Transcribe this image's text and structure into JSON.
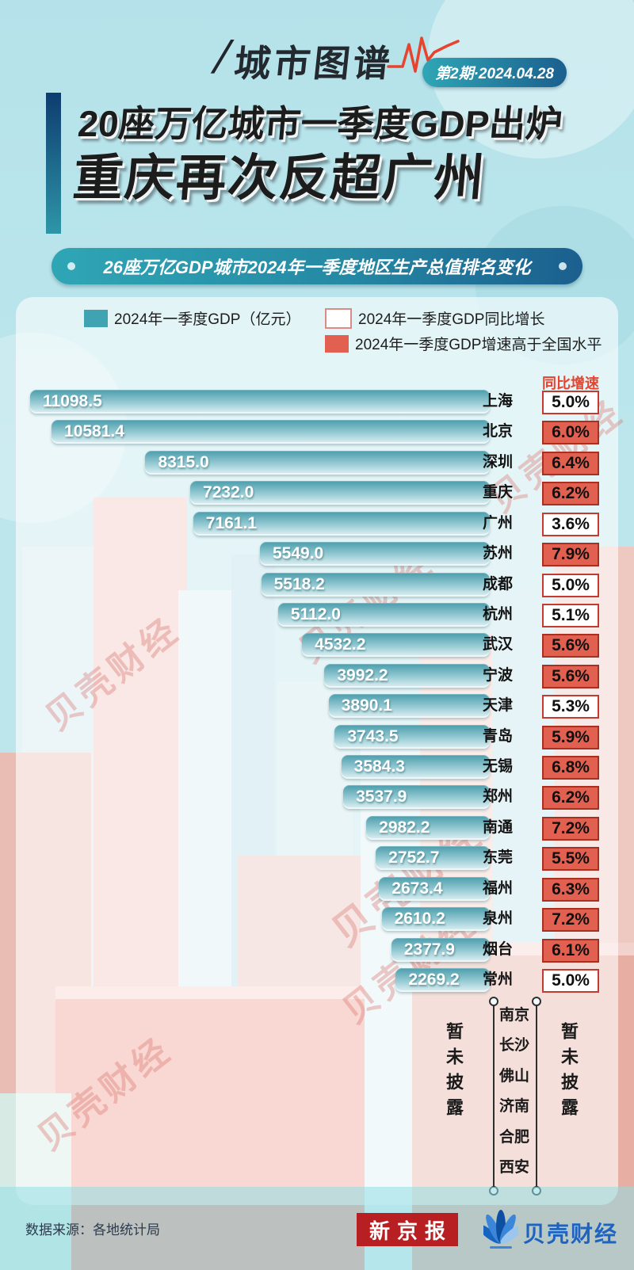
{
  "header": {
    "brand": "城市图谱",
    "issue": "第2期·2024.04.28"
  },
  "title": {
    "line1": "20座万亿城市一季度GDP出炉",
    "line2": "重庆再次反超广州"
  },
  "banner": "26座万亿GDP城市2024年一季度地区生产总值排名变化",
  "legend": {
    "gdp": "2024年一季度GDP（亿元）",
    "growth": "2024年一季度GDP同比增长",
    "above_national": "2024年一季度GDP增速高于全国水平"
  },
  "chart_data": {
    "type": "bar",
    "title": "26座万亿GDP城市2024年一季度地区生产总值排名变化",
    "growth_header": "同比增速",
    "unit": "亿元",
    "max_value": 11098.5,
    "series": [
      {
        "city": "上海",
        "value": 11098.5,
        "label": "11098.5",
        "growth": "5.0%",
        "above": false
      },
      {
        "city": "北京",
        "value": 10581.4,
        "label": "10581.4",
        "growth": "6.0%",
        "above": true
      },
      {
        "city": "深圳",
        "value": 8315.0,
        "label": "8315.0",
        "growth": "6.4%",
        "above": true
      },
      {
        "city": "重庆",
        "value": 7232.0,
        "label": "7232.0",
        "growth": "6.2%",
        "above": true
      },
      {
        "city": "广州",
        "value": 7161.1,
        "label": "7161.1",
        "growth": "3.6%",
        "above": false
      },
      {
        "city": "苏州",
        "value": 5549.0,
        "label": "5549.0",
        "growth": "7.9%",
        "above": true
      },
      {
        "city": "成都",
        "value": 5518.2,
        "label": "5518.2",
        "growth": "5.0%",
        "above": false
      },
      {
        "city": "杭州",
        "value": 5112.0,
        "label": "5112.0",
        "growth": "5.1%",
        "above": false
      },
      {
        "city": "武汉",
        "value": 4532.2,
        "label": "4532.2",
        "growth": "5.6%",
        "above": true
      },
      {
        "city": "宁波",
        "value": 3992.2,
        "label": "3992.2",
        "growth": "5.6%",
        "above": true
      },
      {
        "city": "天津",
        "value": 3890.1,
        "label": "3890.1",
        "growth": "5.3%",
        "above": false
      },
      {
        "city": "青岛",
        "value": 3743.5,
        "label": "3743.5",
        "growth": "5.9%",
        "above": true
      },
      {
        "city": "无锡",
        "value": 3584.3,
        "label": "3584.3",
        "growth": "6.8%",
        "above": true
      },
      {
        "city": "郑州",
        "value": 3537.9,
        "label": "3537.9",
        "growth": "6.2%",
        "above": true
      },
      {
        "city": "南通",
        "value": 2982.2,
        "label": "2982.2",
        "growth": "7.2%",
        "above": true
      },
      {
        "city": "东莞",
        "value": 2752.7,
        "label": "2752.7",
        "growth": "5.5%",
        "above": true
      },
      {
        "city": "福州",
        "value": 2673.4,
        "label": "2673.4",
        "growth": "6.3%",
        "above": true
      },
      {
        "city": "泉州",
        "value": 2610.2,
        "label": "2610.2",
        "growth": "7.2%",
        "above": true
      },
      {
        "city": "烟台",
        "value": 2377.9,
        "label": "2377.9",
        "growth": "6.1%",
        "above": true
      },
      {
        "city": "常州",
        "value": 2269.2,
        "label": "2269.2",
        "growth": "5.0%",
        "above": false
      }
    ],
    "pending": {
      "label": "暂未披露",
      "cities": [
        "南京",
        "长沙",
        "佛山",
        "济南",
        "合肥",
        "西安"
      ]
    }
  },
  "footer": {
    "source": "数据来源：各地统计局",
    "press": "新京报",
    "finance": "贝壳财经"
  },
  "watermark": "贝壳财经",
  "colors": {
    "bg": "#b5e2ea",
    "barTop": "#4b9dac",
    "barMid": "#93c9d2",
    "barLow": "#dff1f4",
    "barSwatch": "#3fa3b1",
    "growthRed": "#e8432e",
    "boxRedBg": "#e2604f",
    "boxRedBorder": "#a93020",
    "boxWhiteBorder": "#c23b2e",
    "boxWhiteBorderSoft": "#d98b85",
    "bannerFrom": "#2fa6b5",
    "bannerTo": "#1b5f8e",
    "leftBarFrom": "#0d3c6f",
    "leftBarTo": "#2e96a8",
    "titleInk": "#1c1c1c",
    "pressRed": "#b81f22",
    "financeBlue": "#1e63c0",
    "watermark": "#d96a64"
  }
}
